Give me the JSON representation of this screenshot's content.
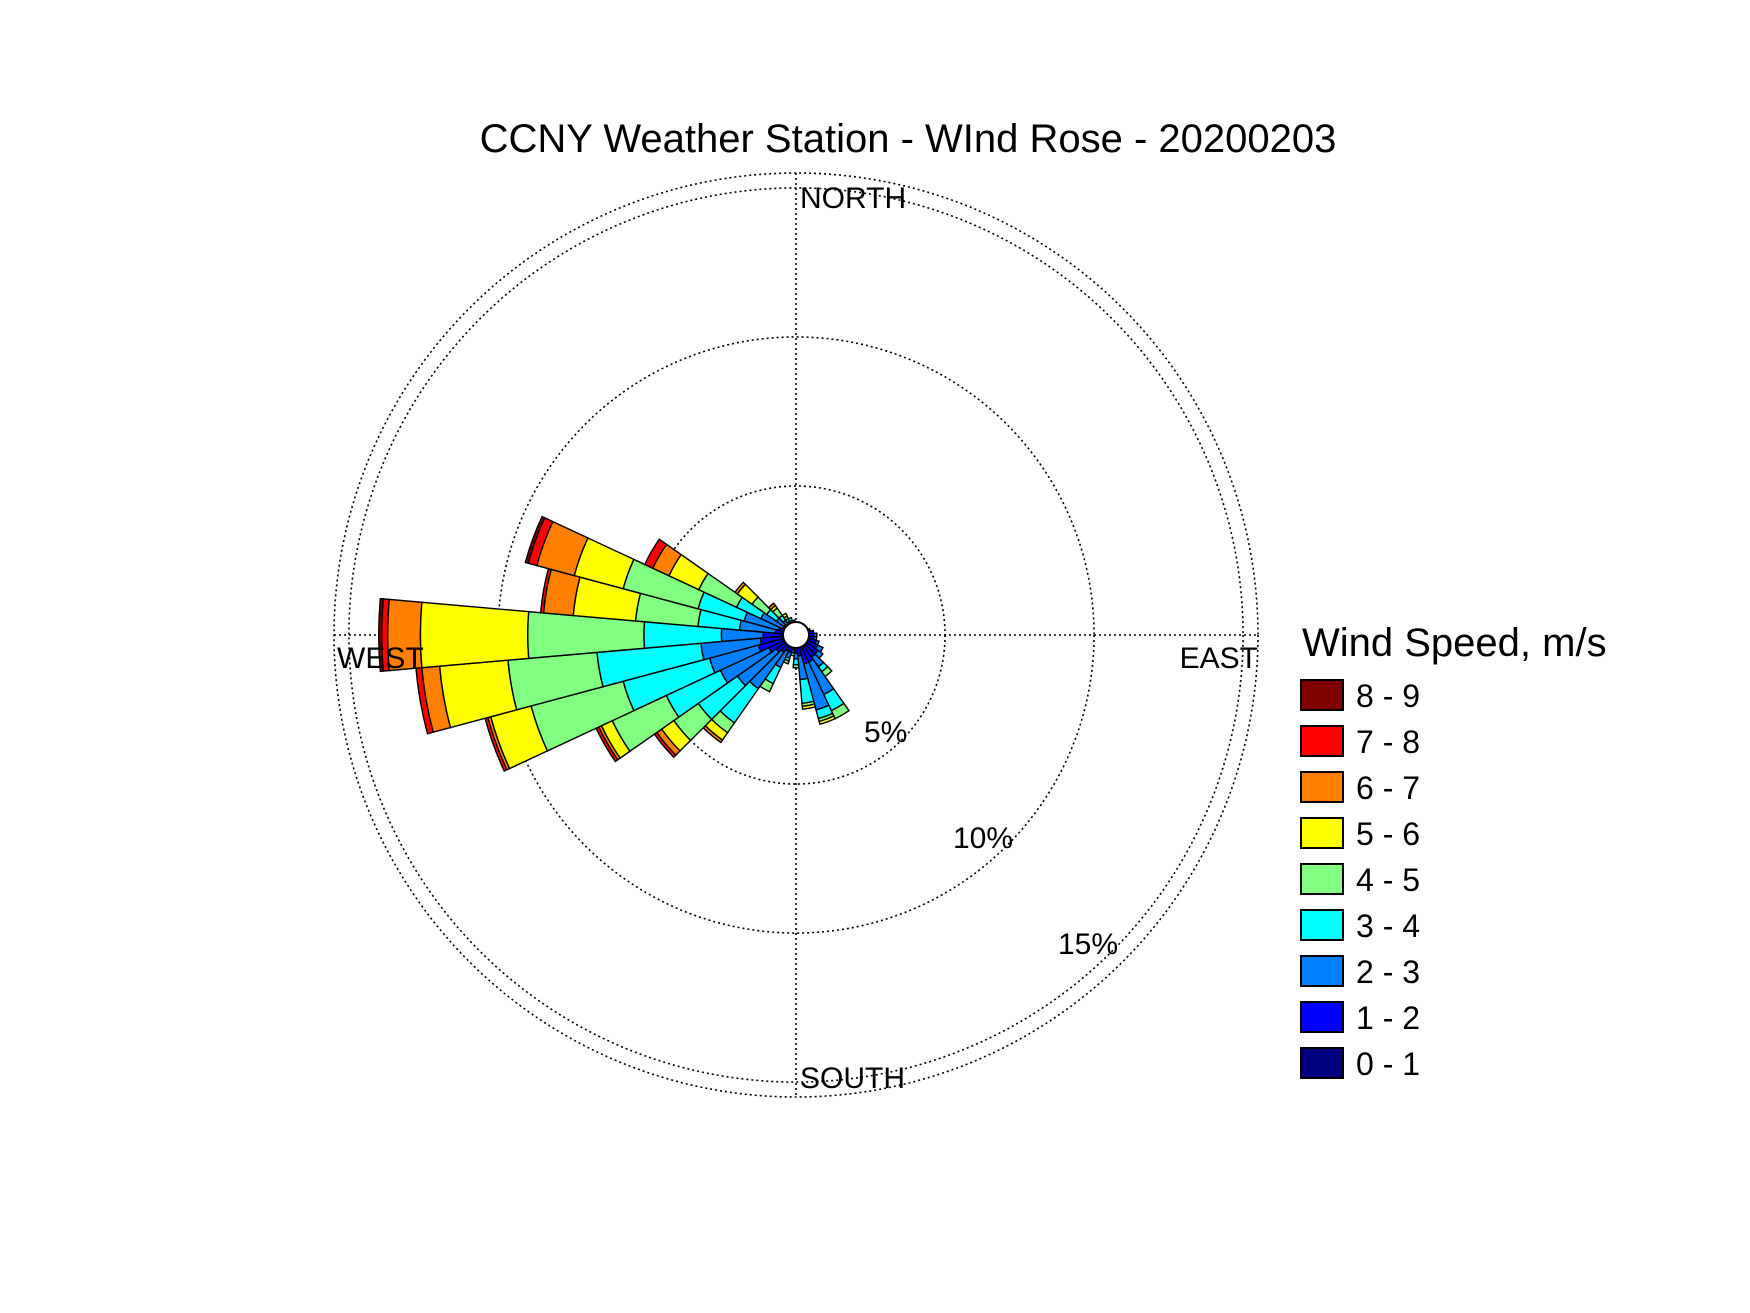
{
  "chart_data": {
    "type": "wind-rose",
    "title": "CCNY Weather Station - WInd Rose - 20200203",
    "direction_labels": {
      "north": "NORTH",
      "south": "SOUTH",
      "east": "EAST",
      "west": "WEST"
    },
    "radial_ticks": [
      {
        "value": 5,
        "label": "5%"
      },
      {
        "value": 10,
        "label": "10%"
      },
      {
        "value": 15,
        "label": "15%"
      }
    ],
    "rmax": 15.5,
    "grid": true,
    "legend": {
      "title": "Wind Speed, m/s",
      "placement": "right"
    },
    "speed_bins": [
      {
        "label": "0 - 1",
        "color": "#000080"
      },
      {
        "label": "1 - 2",
        "color": "#0000ff"
      },
      {
        "label": "2 - 3",
        "color": "#0080ff"
      },
      {
        "label": "3 - 4",
        "color": "#00ffff"
      },
      {
        "label": "4 - 5",
        "color": "#80ff80"
      },
      {
        "label": "5 - 6",
        "color": "#ffff00"
      },
      {
        "label": "6 - 7",
        "color": "#ff8000"
      },
      {
        "label": "7 - 8",
        "color": "#ff0000"
      },
      {
        "label": "8 - 9",
        "color": "#800000"
      }
    ],
    "sector_width_deg": 10,
    "sectors": [
      {
        "dir": 140,
        "cum": [
          0.3,
          0.9,
          1.3,
          1.5,
          1.7,
          1.7,
          1.7,
          1.7,
          1.7
        ]
      },
      {
        "dir": 150,
        "cum": [
          0.3,
          1.0,
          2.2,
          2.8,
          3.1,
          3.1,
          3.1,
          3.1,
          3.1
        ]
      },
      {
        "dir": 160,
        "cum": [
          0.3,
          1.0,
          2.6,
          2.9,
          3.0,
          3.1,
          3.1,
          3.1,
          3.1
        ]
      },
      {
        "dir": 170,
        "cum": [
          0.3,
          0.7,
          1.5,
          2.3,
          2.4,
          2.5,
          2.5,
          2.5,
          2.5
        ]
      },
      {
        "dir": 180,
        "cum": [
          0.3,
          0.6,
          0.8,
          1.0,
          1.1,
          1.1,
          1.1,
          1.1,
          1.1
        ]
      },
      {
        "dir": 190,
        "cum": [
          0.3,
          0.5,
          0.6,
          0.7,
          0.7,
          0.7,
          0.7,
          0.7,
          0.7
        ]
      },
      {
        "dir": 200,
        "cum": [
          0.3,
          0.6,
          0.8,
          0.9,
          1.0,
          1.0,
          1.0,
          1.0,
          1.0
        ]
      },
      {
        "dir": 210,
        "cum": [
          0.3,
          0.6,
          1.2,
          1.8,
          2.1,
          2.1,
          2.1,
          2.1,
          2.1
        ]
      },
      {
        "dir": 220,
        "cum": [
          0.3,
          0.7,
          2.2,
          3.6,
          4.0,
          4.3,
          4.4,
          4.4,
          4.4
        ]
      },
      {
        "dir": 230,
        "cum": [
          0.3,
          0.8,
          2.4,
          4.0,
          5.0,
          5.5,
          5.7,
          5.8,
          5.8
        ]
      },
      {
        "dir": 240,
        "cum": [
          0.3,
          1.0,
          2.8,
          4.8,
          6.8,
          7.2,
          7.3,
          7.4,
          7.4
        ]
      },
      {
        "dir": 250,
        "cum": [
          0.3,
          1.3,
          3.0,
          6.0,
          9.2,
          10.6,
          10.7,
          10.8,
          10.8
        ]
      },
      {
        "dir": 260,
        "cum": [
          0.3,
          1.2,
          3.2,
          6.7,
          9.7,
          12.0,
          12.6,
          12.8,
          12.8
        ]
      },
      {
        "dir": 270,
        "cum": [
          0.3,
          1.1,
          2.5,
          5.1,
          9.0,
          12.6,
          13.7,
          13.9,
          14.0
        ]
      },
      {
        "dir": 280,
        "cum": [
          0.3,
          0.7,
          1.9,
          3.3,
          5.4,
          7.5,
          8.5,
          8.6,
          8.6
        ]
      },
      {
        "dir": 290,
        "cum": [
          0.3,
          0.6,
          1.8,
          3.4,
          6.0,
          7.7,
          9.0,
          9.3,
          9.4
        ]
      },
      {
        "dir": 300,
        "cum": [
          0.3,
          0.5,
          1.3,
          2.2,
          3.6,
          4.7,
          5.3,
          5.6,
          5.6
        ]
      },
      {
        "dir": 310,
        "cum": [
          0.3,
          0.5,
          0.8,
          1.2,
          1.8,
          2.4,
          2.5,
          2.5,
          2.5
        ]
      },
      {
        "dir": 320,
        "cum": [
          0.3,
          0.4,
          0.6,
          0.8,
          1.1,
          1.2,
          1.3,
          1.3,
          1.3
        ]
      },
      {
        "dir": 330,
        "cum": [
          0.3,
          0.4,
          0.5,
          0.6,
          0.7,
          0.8,
          0.8,
          0.8,
          0.8
        ]
      },
      {
        "dir": 340,
        "cum": [
          0.3,
          0.4,
          0.5,
          0.6,
          0.6,
          0.6,
          0.6,
          0.6,
          0.6
        ]
      },
      {
        "dir": 350,
        "cum": [
          0.3,
          0.4,
          0.5,
          0.5,
          0.5,
          0.5,
          0.5,
          0.5,
          0.5
        ]
      },
      {
        "dir": 0,
        "cum": [
          0.3,
          0.4,
          0.4,
          0.4,
          0.4,
          0.4,
          0.4,
          0.4,
          0.4
        ]
      },
      {
        "dir": 10,
        "cum": [
          0.3,
          0.4,
          0.4,
          0.4,
          0.4,
          0.4,
          0.4,
          0.4,
          0.4
        ]
      },
      {
        "dir": 20,
        "cum": [
          0.3,
          0.4,
          0.4,
          0.4,
          0.4,
          0.4,
          0.4,
          0.4,
          0.4
        ]
      },
      {
        "dir": 30,
        "cum": [
          0.3,
          0.4,
          0.4,
          0.4,
          0.4,
          0.4,
          0.4,
          0.4,
          0.4
        ]
      },
      {
        "dir": 40,
        "cum": [
          0.3,
          0.4,
          0.4,
          0.4,
          0.4,
          0.4,
          0.4,
          0.4,
          0.4
        ]
      },
      {
        "dir": 50,
        "cum": [
          0.3,
          0.4,
          0.4,
          0.4,
          0.4,
          0.4,
          0.4,
          0.4,
          0.4
        ]
      },
      {
        "dir": 60,
        "cum": [
          0.3,
          0.4,
          0.4,
          0.4,
          0.4,
          0.4,
          0.4,
          0.4,
          0.4
        ]
      },
      {
        "dir": 70,
        "cum": [
          0.3,
          0.5,
          0.5,
          0.5,
          0.5,
          0.5,
          0.5,
          0.5,
          0.5
        ]
      },
      {
        "dir": 80,
        "cum": [
          0.3,
          0.6,
          0.6,
          0.6,
          0.6,
          0.6,
          0.6,
          0.6,
          0.6
        ]
      },
      {
        "dir": 90,
        "cum": [
          0.3,
          0.6,
          0.7,
          0.7,
          0.7,
          0.7,
          0.7,
          0.7,
          0.7
        ]
      },
      {
        "dir": 100,
        "cum": [
          0.3,
          0.6,
          0.7,
          0.7,
          0.7,
          0.7,
          0.7,
          0.7,
          0.7
        ]
      },
      {
        "dir": 110,
        "cum": [
          0.3,
          0.7,
          0.8,
          0.8,
          0.8,
          0.8,
          0.8,
          0.8,
          0.8
        ]
      },
      {
        "dir": 120,
        "cum": [
          0.3,
          0.8,
          1.0,
          1.0,
          1.0,
          1.0,
          1.0,
          1.0,
          1.0
        ]
      },
      {
        "dir": 130,
        "cum": [
          0.3,
          0.9,
          1.1,
          1.1,
          1.1,
          1.1,
          1.1,
          1.1,
          1.1
        ]
      }
    ]
  }
}
